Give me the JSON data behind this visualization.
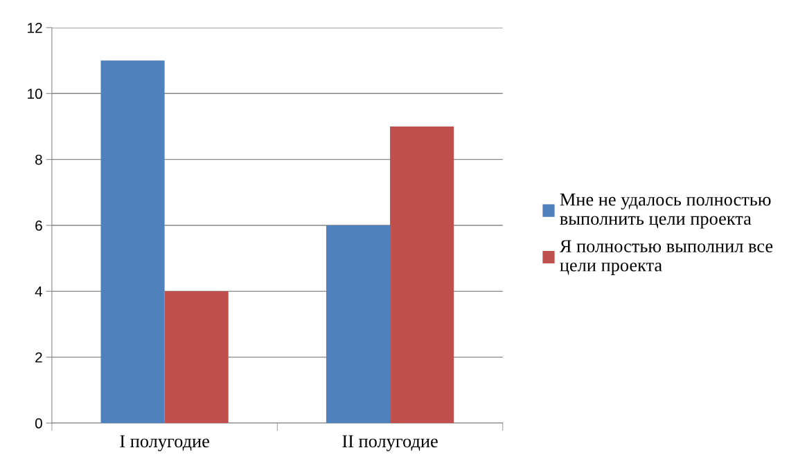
{
  "chart_data": {
    "type": "bar",
    "categories": [
      "I полугодие",
      "II полугодие"
    ],
    "series": [
      {
        "name": "Мне не удалось полностью выполнить цели проекта",
        "color": "#4f81bd",
        "values": [
          11,
          6
        ]
      },
      {
        "name": "Я полностью выполнил все цели проекта",
        "color": "#c0504d",
        "values": [
          4,
          9
        ]
      }
    ],
    "ylim": [
      0,
      12
    ],
    "yticks": [
      0,
      2,
      4,
      6,
      8,
      10,
      12
    ],
    "grid": "y",
    "legend": "right"
  }
}
